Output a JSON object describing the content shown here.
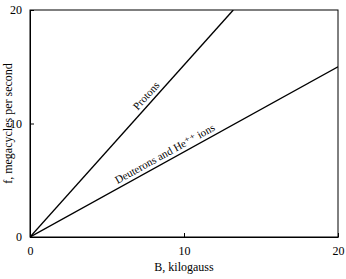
{
  "chart_data": {
    "type": "line",
    "x_label": "B, kilogauss",
    "y_label": "f, megacycles per second",
    "series": [
      {
        "name": "Protons",
        "color": "#000000",
        "x": [
          0,
          13.2
        ],
        "values": [
          0,
          20
        ]
      },
      {
        "name": "Deuterons and He⁺⁺ ions",
        "color": "#000000",
        "x": [
          0,
          20
        ],
        "values": [
          0,
          15
        ]
      }
    ],
    "xlim": [
      0,
      20
    ],
    "xticks": [
      0,
      10,
      20
    ],
    "ylim": [
      0,
      20
    ],
    "yticks": [
      0,
      10,
      20
    ],
    "grid": false
  }
}
